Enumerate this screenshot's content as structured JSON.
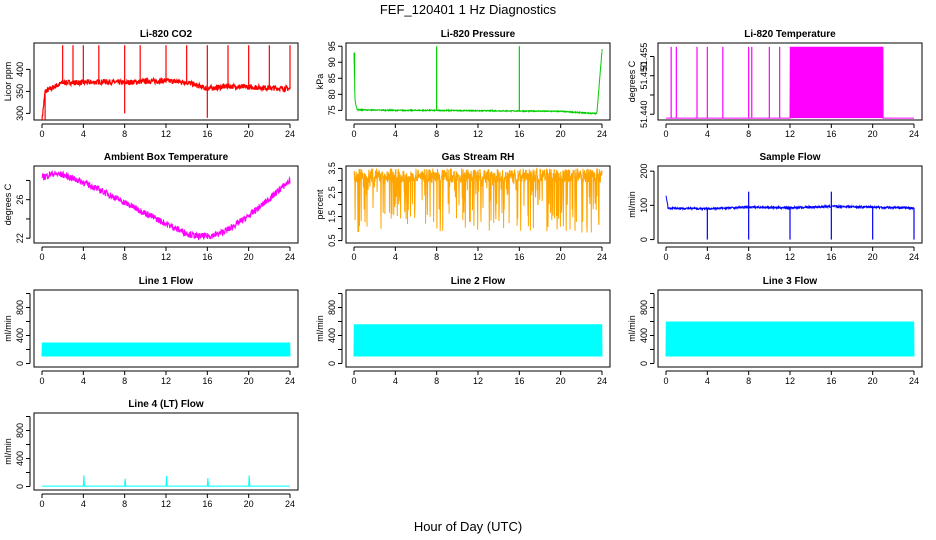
{
  "figure": {
    "title": "FEF_120401  1 Hz Diagnostics",
    "xlabel": "Hour of Day (UTC)"
  },
  "chart_data": [
    {
      "type": "line",
      "title": "Li-820 CO2",
      "ylabel": "Licor ppm",
      "color": "#ff0000",
      "xlim": [
        0,
        24
      ],
      "x_ticks": [
        0,
        4,
        8,
        12,
        16,
        20,
        24
      ],
      "y_ticks": [
        300,
        350,
        400
      ],
      "ylim": [
        285,
        460
      ],
      "series": [
        {
          "x": [
            0,
            0.3,
            2,
            4,
            6,
            8,
            10,
            12,
            14,
            16,
            18,
            20,
            22,
            24
          ],
          "values": [
            285,
            350,
            370,
            370,
            372,
            370,
            373,
            374,
            371,
            356,
            362,
            360,
            358,
            356
          ]
        }
      ]
    },
    {
      "type": "line",
      "title": "Li-820 Pressure",
      "ylabel": "kPa",
      "color": "#00cc00",
      "xlim": [
        0,
        24
      ],
      "x_ticks": [
        0,
        4,
        8,
        12,
        16,
        20,
        24
      ],
      "y_ticks": [
        75,
        80,
        85,
        90,
        95
      ],
      "ylim": [
        72,
        96
      ],
      "series": [
        {
          "x": [
            0,
            0.1,
            0.3,
            4,
            8,
            12,
            16,
            20,
            23.5,
            24
          ],
          "values": [
            93,
            78,
            75.2,
            75,
            75,
            74.9,
            74.8,
            74.7,
            74,
            93.5
          ]
        }
      ]
    },
    {
      "type": "line",
      "title": "Li-820 Temperature",
      "ylabel": "degrees C",
      "color": "#ff00ff",
      "xlim": [
        0,
        24
      ],
      "x_ticks": [
        0,
        4,
        8,
        12,
        16,
        20,
        24
      ],
      "y_ticks": [
        51.44,
        51.445,
        51.45,
        51.455
      ],
      "y_tick_labels": [
        "51.440",
        "",
        "51.450",
        "51.455"
      ],
      "ylim": [
        51.4385,
        51.4585
      ],
      "series": [
        {
          "x": [
            0,
            24
          ],
          "values": [
            51.439,
            51.439
          ]
        }
      ]
    },
    {
      "type": "line",
      "title": "Ambient Box Temperature",
      "ylabel": "degrees C",
      "color": "#ff00ff",
      "xlim": [
        0,
        24
      ],
      "x_ticks": [
        0,
        4,
        8,
        12,
        16,
        20,
        24
      ],
      "y_ticks": [
        22,
        24,
        26,
        28
      ],
      "y_tick_labels": [
        "22",
        "",
        "26",
        ""
      ],
      "ylim": [
        21.5,
        29.5
      ],
      "series": [
        {
          "x": [
            0,
            1,
            2,
            4,
            6,
            8,
            10,
            12,
            14,
            15,
            16,
            17,
            18,
            20,
            22,
            24
          ],
          "values": [
            28.3,
            28.7,
            28.6,
            27.8,
            26.8,
            25.7,
            24.6,
            23.5,
            22.5,
            22.2,
            22.2,
            22.4,
            22.9,
            24.3,
            26.1,
            28.0
          ]
        }
      ]
    },
    {
      "type": "line",
      "title": "Gas Stream RH",
      "ylabel": "percent",
      "color": "#ffa500",
      "xlim": [
        0,
        24
      ],
      "x_ticks": [
        0,
        4,
        8,
        12,
        16,
        20,
        24
      ],
      "y_ticks": [
        0.5,
        1.0,
        1.5,
        2.0,
        2.5,
        3.0,
        3.5
      ],
      "y_tick_labels": [
        "0.5",
        "",
        "1.5",
        "",
        "2.5",
        "",
        "3.5"
      ],
      "ylim": [
        0.4,
        3.6
      ],
      "series": [
        {
          "x": [
            0,
            24
          ],
          "values": [
            3.4,
            3.4
          ]
        }
      ]
    },
    {
      "type": "line",
      "title": "Sample Flow",
      "ylabel": "ml/min",
      "color": "#0000ff",
      "xlim": [
        0,
        24
      ],
      "x_ticks": [
        0,
        4,
        8,
        12,
        16,
        20,
        24
      ],
      "y_ticks": [
        0,
        100,
        200
      ],
      "ylim": [
        -10,
        215
      ],
      "series": [
        {
          "x": [
            0,
            0.2,
            4,
            8,
            12,
            16,
            20,
            24
          ],
          "values": [
            130,
            92,
            90,
            95,
            93,
            97,
            95,
            92
          ]
        }
      ]
    },
    {
      "type": "line",
      "title": "Line 1 Flow",
      "ylabel": "ml/min",
      "color": "#00ffff",
      "xlim": [
        0,
        24
      ],
      "x_ticks": [
        0,
        4,
        8,
        12,
        16,
        20,
        24
      ],
      "y_ticks": [
        0,
        200,
        400,
        600,
        800,
        1000
      ],
      "y_tick_labels": [
        "0",
        "",
        "400",
        "",
        "800",
        ""
      ],
      "ylim": [
        -50,
        1050
      ],
      "series": [
        {
          "x": [
            0,
            24
          ],
          "values": [
            300,
            300
          ]
        }
      ]
    },
    {
      "type": "line",
      "title": "Line 2 Flow",
      "ylabel": "ml/min",
      "color": "#00ffff",
      "xlim": [
        0,
        24
      ],
      "x_ticks": [
        0,
        4,
        8,
        12,
        16,
        20,
        24
      ],
      "y_ticks": [
        0,
        200,
        400,
        600,
        800,
        1000
      ],
      "y_tick_labels": [
        "0",
        "",
        "400",
        "",
        "800",
        ""
      ],
      "ylim": [
        -50,
        1050
      ],
      "series": [
        {
          "x": [
            0,
            24
          ],
          "values": [
            560,
            560
          ]
        }
      ]
    },
    {
      "type": "line",
      "title": "Line 3 Flow",
      "ylabel": "ml/min",
      "color": "#00ffff",
      "xlim": [
        0,
        24
      ],
      "x_ticks": [
        0,
        4,
        8,
        12,
        16,
        20,
        24
      ],
      "y_ticks": [
        0,
        200,
        400,
        600,
        800,
        1000
      ],
      "y_tick_labels": [
        "0",
        "",
        "400",
        "",
        "800",
        ""
      ],
      "ylim": [
        -50,
        1050
      ],
      "series": [
        {
          "x": [
            0,
            24
          ],
          "values": [
            600,
            600
          ]
        }
      ]
    },
    {
      "type": "line",
      "title": "Line 4 (LT) Flow",
      "ylabel": "ml/min",
      "color": "#00ffff",
      "xlim": [
        0,
        24
      ],
      "x_ticks": [
        0,
        4,
        8,
        12,
        16,
        20,
        24
      ],
      "y_ticks": [
        0,
        200,
        400,
        600,
        800,
        1000
      ],
      "y_tick_labels": [
        "0",
        "",
        "400",
        "",
        "800",
        ""
      ],
      "ylim": [
        -50,
        1050
      ],
      "series": [
        {
          "x": [
            0,
            4,
            4.05,
            4.1,
            8,
            8.05,
            8.1,
            12,
            12.05,
            12.1,
            16,
            16.05,
            16.1,
            20,
            20.05,
            20.1,
            24
          ],
          "values": [
            5,
            5,
            170,
            5,
            5,
            120,
            5,
            5,
            160,
            5,
            5,
            130,
            5,
            5,
            170,
            5,
            5
          ]
        }
      ]
    }
  ]
}
